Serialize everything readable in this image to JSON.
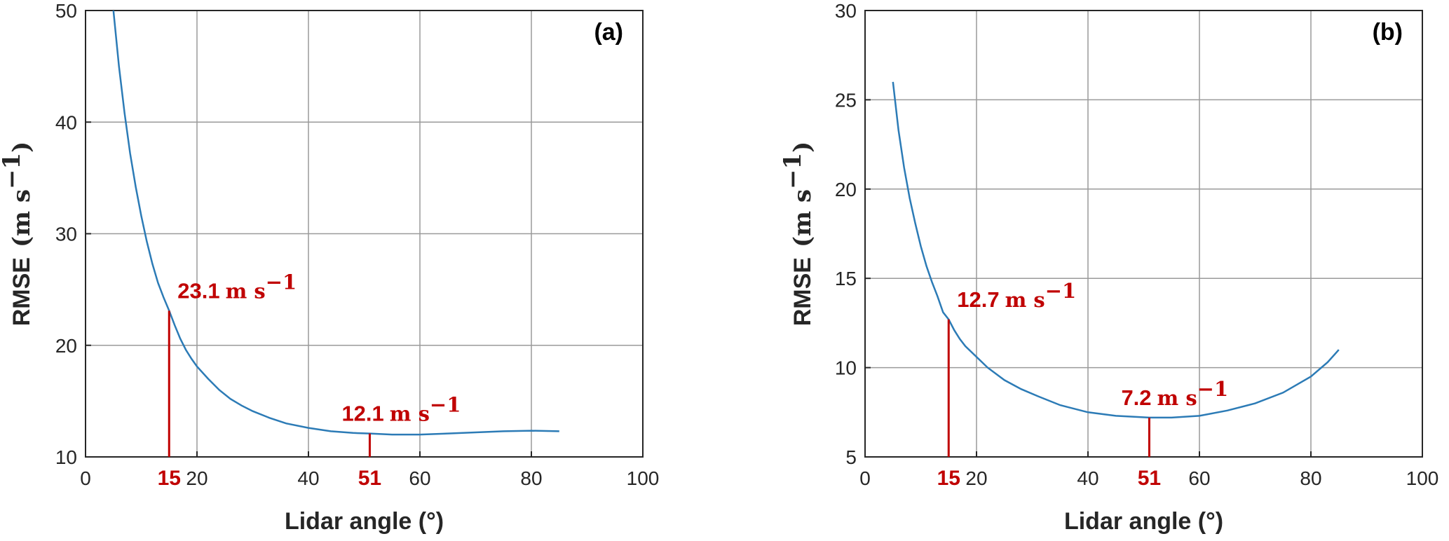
{
  "colors": {
    "curve": "#2c7bb6",
    "annotation": "#c00000",
    "grid": "#9a9a9a",
    "axis": "#262626"
  },
  "chart_data": [
    {
      "panel_label": "(a)",
      "type": "line",
      "xlabel": "Lidar angle (°)",
      "ylabel_text": "RMSE",
      "ylabel_unit": "(m s",
      "ylabel_exp": "−1",
      "ylabel_close": ")",
      "xlim": [
        0,
        100
      ],
      "ylim": [
        10,
        50
      ],
      "xticks": [
        0,
        20,
        40,
        60,
        80,
        100
      ],
      "yticks": [
        10,
        20,
        30,
        40,
        50
      ],
      "grid": true,
      "series": [
        {
          "x": [
            5,
            6,
            7,
            8,
            9,
            10,
            11,
            12,
            13,
            14,
            15,
            16,
            17,
            18,
            19,
            20,
            22,
            24,
            26,
            28,
            30,
            33,
            36,
            40,
            44,
            48,
            51,
            55,
            60,
            65,
            70,
            75,
            80,
            85
          ],
          "y": [
            50.0,
            45.0,
            40.8,
            37.2,
            34.2,
            31.6,
            29.3,
            27.3,
            25.6,
            24.3,
            23.1,
            21.8,
            20.6,
            19.6,
            18.8,
            18.1,
            17.0,
            16.0,
            15.2,
            14.6,
            14.1,
            13.5,
            13.0,
            12.6,
            12.3,
            12.15,
            12.1,
            12.0,
            12.0,
            12.1,
            12.2,
            12.3,
            12.35,
            12.3
          ]
        }
      ],
      "markers": [
        {
          "x": 15,
          "label": "15",
          "value_text": "23.1",
          "unit_text": "m s",
          "exp_text": "−1",
          "y": 23.1
        },
        {
          "x": 51,
          "label": "51",
          "value_text": "12.1",
          "unit_text": "m s",
          "exp_text": "−1",
          "y": 12.1
        }
      ]
    },
    {
      "panel_label": "(b)",
      "type": "line",
      "xlabel": "Lidar angle (°)",
      "ylabel_text": "RMSE",
      "ylabel_unit": "(m s",
      "ylabel_exp": "−1",
      "ylabel_close": ")",
      "xlim": [
        0,
        100
      ],
      "ylim": [
        5,
        30
      ],
      "xticks": [
        0,
        20,
        40,
        60,
        80,
        100
      ],
      "yticks": [
        5,
        10,
        15,
        20,
        25,
        30
      ],
      "grid": true,
      "series": [
        {
          "x": [
            5,
            6,
            7,
            8,
            9,
            10,
            11,
            12,
            13,
            14,
            15,
            16,
            17,
            18,
            20,
            22,
            25,
            28,
            31,
            35,
            40,
            45,
            51,
            55,
            60,
            65,
            70,
            75,
            80,
            83,
            85
          ],
          "y": [
            26.0,
            23.3,
            21.2,
            19.5,
            18.1,
            16.8,
            15.7,
            14.8,
            14.0,
            13.1,
            12.7,
            12.1,
            11.6,
            11.2,
            10.6,
            10.0,
            9.3,
            8.8,
            8.4,
            7.9,
            7.5,
            7.3,
            7.2,
            7.2,
            7.3,
            7.6,
            8.0,
            8.6,
            9.5,
            10.3,
            11.0
          ]
        }
      ],
      "markers": [
        {
          "x": 15,
          "label": "15",
          "value_text": "12.7",
          "unit_text": "m s",
          "exp_text": "−1",
          "y": 12.7
        },
        {
          "x": 51,
          "label": "51",
          "value_text": "7.2",
          "unit_text": "m s",
          "exp_text": "−1",
          "y": 7.2
        }
      ]
    }
  ]
}
